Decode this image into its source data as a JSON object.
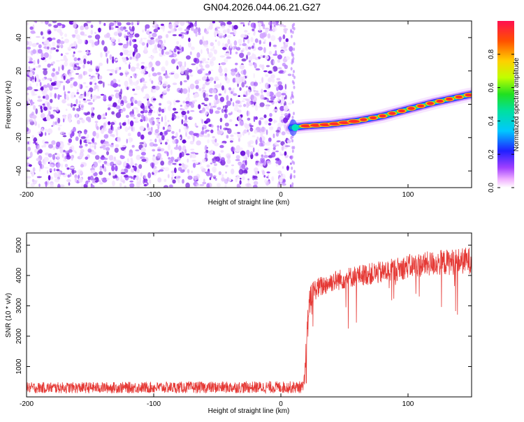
{
  "title": "GN04.2026.044.06.21.G27",
  "colors": {
    "snr_line": "#e53935",
    "noise_purple": "#7a1fe6",
    "frame": "#000000"
  },
  "chart_data": [
    {
      "type": "heatmap",
      "title": "GN04.2026.044.06.21.G27",
      "xlabel": "Height of straight line (km)",
      "ylabel": "Frequency (Hz)",
      "xlim": [
        -200,
        150
      ],
      "ylim": [
        -50,
        50
      ],
      "xticks": [
        -200,
        -100,
        0,
        100
      ],
      "yticks": [
        -40,
        -20,
        0,
        20,
        40
      ],
      "noise_region_x": [
        -200,
        8
      ],
      "signal_track": {
        "x": [
          8,
          20,
          40,
          60,
          80,
          100,
          120,
          150
        ],
        "frequency": [
          -14,
          -13,
          -12,
          -10,
          -7,
          -3,
          1,
          6
        ]
      },
      "colorbar": {
        "label": "Normalized spectral amplitude",
        "range": [
          0,
          1
        ],
        "ticks": [
          "0.0",
          "0.2",
          "0.4",
          "0.6",
          "0.8"
        ]
      }
    },
    {
      "type": "line",
      "xlabel": "Height of straight line (km)",
      "ylabel": "SNR (10 * v/v)",
      "xlim": [
        -200,
        150
      ],
      "ylim": [
        0,
        5400
      ],
      "xticks": [
        -200,
        -100,
        0,
        100
      ],
      "yticks": [
        1000,
        2000,
        3000,
        4000,
        5000
      ],
      "series": [
        {
          "name": "SNR",
          "envelope": {
            "x": [
              -200,
              18,
              20,
              22,
              25,
              40,
              60,
              80,
              100,
              120,
              150
            ],
            "mean": [
              300,
              320,
              1200,
              3000,
              3500,
              3800,
              4000,
              4100,
              4300,
              4400,
              4500
            ],
            "spread": [
              180,
              200,
              900,
              500,
              350,
              350,
              350,
              380,
              400,
              420,
              450
            ]
          }
        }
      ]
    }
  ]
}
